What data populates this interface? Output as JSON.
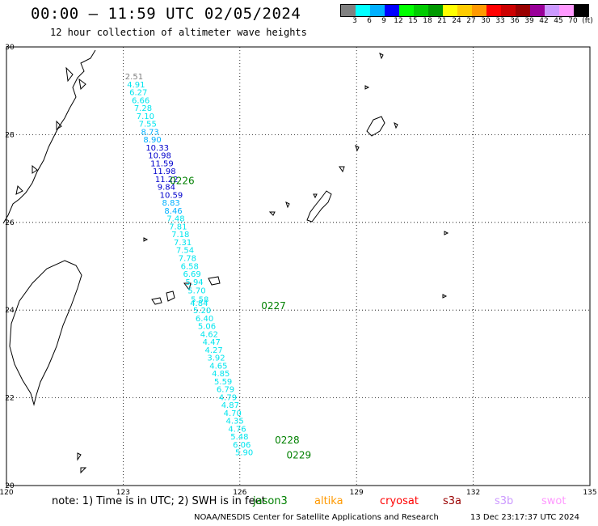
{
  "header": {
    "title": "00:00 – 11:59 UTC 02/05/2024",
    "subtitle": "12 hour collection of altimeter wave heights"
  },
  "colorbar": {
    "colors": [
      "#808080",
      "#00ffff",
      "#00b0ff",
      "#0000ff",
      "#00ff00",
      "#00cc00",
      "#009900",
      "#ffff00",
      "#ffcc00",
      "#ff9900",
      "#ff0000",
      "#cc0000",
      "#990000",
      "#990099",
      "#cc99ff",
      "#ff99ff",
      "#000000"
    ],
    "labels": [
      "3",
      "6",
      "9",
      "12",
      "15",
      "18",
      "21",
      "24",
      "27",
      "30",
      "33",
      "36",
      "39",
      "42",
      "45",
      "70",
      "(ft)"
    ]
  },
  "map": {
    "lon_range": [
      120,
      135
    ],
    "lat_range": [
      20,
      30
    ],
    "lon_ticks": [
      "120",
      "123",
      "126",
      "129",
      "132",
      "135"
    ],
    "lat_ticks": [
      "30",
      "28",
      "26",
      "24",
      "22",
      "20"
    ],
    "track": [
      {
        "lon": 123.05,
        "lat": 29.26,
        "v": "2.51",
        "c": "#808080"
      },
      {
        "lon": 123.1,
        "lat": 29.08,
        "v": "4.91",
        "c": "#00e5ee"
      },
      {
        "lon": 123.16,
        "lat": 28.9,
        "v": "6.27",
        "c": "#00e5ee"
      },
      {
        "lon": 123.22,
        "lat": 28.72,
        "v": "6.66",
        "c": "#00e5ee"
      },
      {
        "lon": 123.28,
        "lat": 28.54,
        "v": "7.28",
        "c": "#00e5ee"
      },
      {
        "lon": 123.34,
        "lat": 28.36,
        "v": "7.10",
        "c": "#00e5ee"
      },
      {
        "lon": 123.4,
        "lat": 28.18,
        "v": "7.55",
        "c": "#00e5ee"
      },
      {
        "lon": 123.46,
        "lat": 28.0,
        "v": "8.73",
        "c": "#00b0ff"
      },
      {
        "lon": 123.52,
        "lat": 27.82,
        "v": "8.90",
        "c": "#00b0ff"
      },
      {
        "lon": 123.58,
        "lat": 27.64,
        "v": "10.33",
        "c": "#0000cc"
      },
      {
        "lon": 123.64,
        "lat": 27.46,
        "v": "10.98",
        "c": "#0000cc"
      },
      {
        "lon": 123.7,
        "lat": 27.28,
        "v": "11.59",
        "c": "#0000cc"
      },
      {
        "lon": 123.76,
        "lat": 27.1,
        "v": "11.98",
        "c": "#0000cc"
      },
      {
        "lon": 123.82,
        "lat": 26.92,
        "v": "11.22",
        "c": "#0000cc"
      },
      {
        "lon": 123.88,
        "lat": 26.74,
        "v": "9.84",
        "c": "#0000cc"
      },
      {
        "lon": 123.94,
        "lat": 26.56,
        "v": "10.59",
        "c": "#0000cc"
      },
      {
        "lon": 124.0,
        "lat": 26.38,
        "v": "8.83",
        "c": "#00b0ff"
      },
      {
        "lon": 124.06,
        "lat": 26.2,
        "v": "8.46",
        "c": "#00b0ff"
      },
      {
        "lon": 124.12,
        "lat": 26.02,
        "v": "7.48",
        "c": "#00e5ee"
      },
      {
        "lon": 124.18,
        "lat": 25.84,
        "v": "7.81",
        "c": "#00e5ee"
      },
      {
        "lon": 124.24,
        "lat": 25.66,
        "v": "7.18",
        "c": "#00e5ee"
      },
      {
        "lon": 124.3,
        "lat": 25.48,
        "v": "7.31",
        "c": "#00e5ee"
      },
      {
        "lon": 124.36,
        "lat": 25.3,
        "v": "7.54",
        "c": "#00e5ee"
      },
      {
        "lon": 124.42,
        "lat": 25.12,
        "v": "7.78",
        "c": "#00e5ee"
      },
      {
        "lon": 124.48,
        "lat": 24.94,
        "v": "6.58",
        "c": "#00e5ee"
      },
      {
        "lon": 124.54,
        "lat": 24.76,
        "v": "6.69",
        "c": "#00e5ee"
      },
      {
        "lon": 124.6,
        "lat": 24.58,
        "v": "5.94",
        "c": "#00e5ee"
      },
      {
        "lon": 124.66,
        "lat": 24.38,
        "v": "5.70",
        "c": "#00e5ee"
      },
      {
        "lon": 124.74,
        "lat": 24.18,
        "v": "5.58",
        "c": "#00e5ee"
      },
      {
        "lon": 124.72,
        "lat": 24.1,
        "v": "4.84",
        "c": "#00e5ee"
      },
      {
        "lon": 124.8,
        "lat": 23.93,
        "v": "5.20",
        "c": "#00e5ee"
      },
      {
        "lon": 124.86,
        "lat": 23.75,
        "v": "6.40",
        "c": "#00e5ee"
      },
      {
        "lon": 124.92,
        "lat": 23.57,
        "v": "5.06",
        "c": "#00e5ee"
      },
      {
        "lon": 124.98,
        "lat": 23.39,
        "v": "4.62",
        "c": "#00e5ee"
      },
      {
        "lon": 125.04,
        "lat": 23.21,
        "v": "4.47",
        "c": "#00e5ee"
      },
      {
        "lon": 125.1,
        "lat": 23.03,
        "v": "4.27",
        "c": "#00e5ee"
      },
      {
        "lon": 125.16,
        "lat": 22.85,
        "v": "3.92",
        "c": "#00e5ee"
      },
      {
        "lon": 125.22,
        "lat": 22.67,
        "v": "4.65",
        "c": "#00e5ee"
      },
      {
        "lon": 125.28,
        "lat": 22.49,
        "v": "4.85",
        "c": "#00e5ee"
      },
      {
        "lon": 125.34,
        "lat": 22.31,
        "v": "5.59",
        "c": "#00e5ee"
      },
      {
        "lon": 125.4,
        "lat": 22.13,
        "v": "6.79",
        "c": "#00e5ee"
      },
      {
        "lon": 125.46,
        "lat": 21.95,
        "v": "4.79",
        "c": "#00e5ee"
      },
      {
        "lon": 125.52,
        "lat": 21.77,
        "v": "4.87",
        "c": "#00e5ee"
      },
      {
        "lon": 125.58,
        "lat": 21.59,
        "v": "4.70",
        "c": "#00e5ee"
      },
      {
        "lon": 125.64,
        "lat": 21.41,
        "v": "4.35",
        "c": "#00e5ee"
      },
      {
        "lon": 125.7,
        "lat": 21.23,
        "v": "4.76",
        "c": "#00e5ee"
      },
      {
        "lon": 125.76,
        "lat": 21.05,
        "v": "5.48",
        "c": "#00e5ee"
      },
      {
        "lon": 125.82,
        "lat": 20.87,
        "v": "6.06",
        "c": "#00e5ee"
      },
      {
        "lon": 125.88,
        "lat": 20.69,
        "v": "5.90",
        "c": "#00e5ee"
      }
    ],
    "time_labels": [
      {
        "lon": 124.2,
        "lat": 26.95,
        "t": "0226"
      },
      {
        "lon": 126.55,
        "lat": 24.1,
        "t": "0227"
      },
      {
        "lon": 126.9,
        "lat": 21.03,
        "t": "0228"
      },
      {
        "lon": 127.2,
        "lat": 20.69,
        "t": "0229"
      }
    ]
  },
  "footer": {
    "note": "note: 1) Time is in UTC; 2) SWH is in feet",
    "missions": [
      {
        "name": "jason3",
        "color": "#008000"
      },
      {
        "name": "altika",
        "color": "#ff9900"
      },
      {
        "name": "cryosat",
        "color": "#ff0000"
      },
      {
        "name": "s3a",
        "color": "#990000"
      },
      {
        "name": "s3b",
        "color": "#cc99ff"
      },
      {
        "name": "swot",
        "color": "#ff99ff"
      }
    ],
    "credit": "NOAA/NESDIS Center for Satellite Applications and Research",
    "generated": "13 Dec 23:17:37 UTC 2024"
  }
}
